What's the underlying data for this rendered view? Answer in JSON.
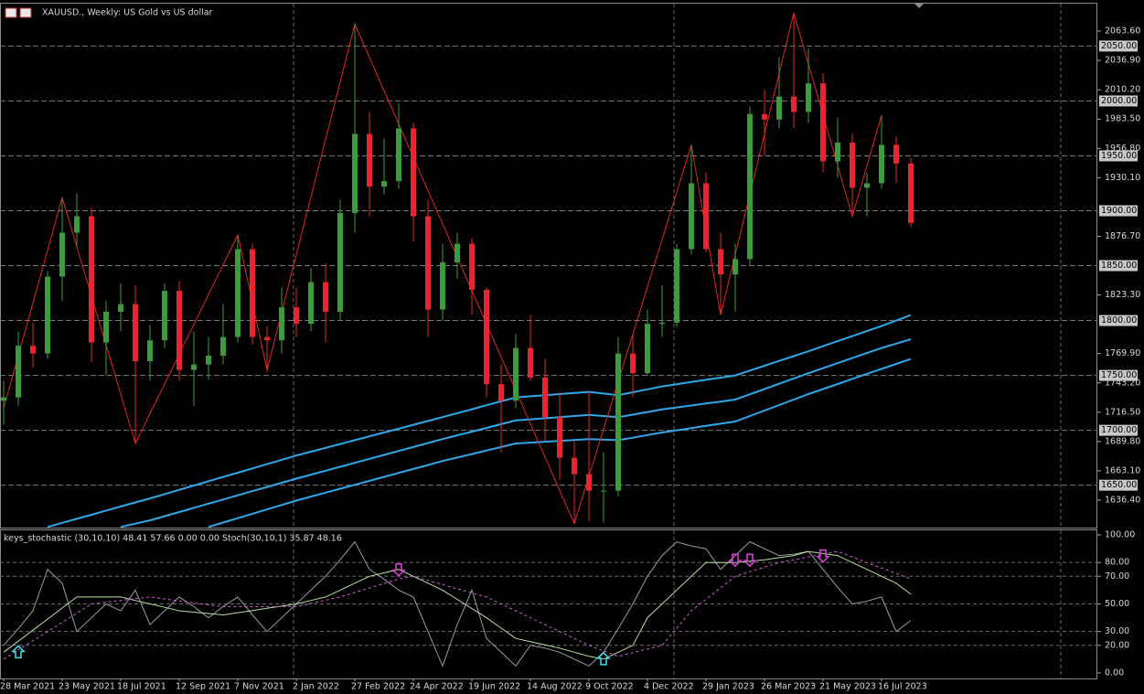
{
  "chart_data": {
    "type": "candlestick",
    "title": "XAUUSD., Weekly:  US Gold vs US dollar",
    "categories": [
      "28 Mar 2021",
      null,
      null,
      null,
      "23 May 2021",
      null,
      null,
      null,
      "18 Jul 2021",
      null,
      null,
      null,
      "12 Sep 2021",
      null,
      null,
      null,
      "7 Nov 2021",
      null,
      null,
      null,
      "2 Jan 2022",
      null,
      null,
      null,
      "27 Feb 2022",
      null,
      null,
      null,
      "24 Apr 2022",
      null,
      null,
      null,
      "19 Jun 2022",
      null,
      null,
      null,
      "14 Aug 2022",
      null,
      null,
      null,
      "9 Oct 2022",
      null,
      null,
      null,
      "4 Dec 2022",
      null,
      null,
      null,
      "29 Jan 2023",
      null,
      null,
      null,
      "26 Mar 2023",
      null,
      null,
      null,
      "21 May 2023",
      null,
      null,
      null,
      "16 Jul 2023",
      null,
      null
    ],
    "open": [
      1727,
      1730,
      1777,
      1770,
      1840,
      1880,
      1895,
      1780,
      1808,
      1815,
      1763,
      1782,
      1827,
      1755,
      1760,
      1768,
      1785,
      1865,
      1785,
      1782,
      1812,
      1797,
      1835,
      1808,
      1898,
      1970,
      1922,
      1927,
      1975,
      1895,
      1810,
      1853,
      1870,
      1828,
      1742,
      1727,
      1775,
      1748,
      1712,
      1675,
      1660,
      1645,
      1645,
      1770,
      1752,
      1797,
      1798,
      1865,
      1925,
      1865,
      1842,
      1856,
      1988,
      1983,
      2004,
      1990,
      2016,
      1945,
      1962,
      1921,
      1925,
      1960,
      1943
    ],
    "high": [
      1745,
      1790,
      1798,
      1845,
      1912,
      1916,
      1903,
      1818,
      1834,
      1832,
      1796,
      1834,
      1836,
      1790,
      1785,
      1815,
      1877,
      1870,
      1795,
      1830,
      1830,
      1848,
      1852,
      1910,
      2070,
      1990,
      1966,
      1998,
      1980,
      1910,
      1870,
      1880,
      1875,
      1830,
      1760,
      1788,
      1805,
      1765,
      1735,
      1690,
      1735,
      1680,
      1785,
      1787,
      1810,
      1832,
      1870,
      1960,
      1935,
      1880,
      1870,
      1995,
      2010,
      2040,
      2080,
      2048,
      2025,
      1985,
      1970,
      1935,
      1987,
      1968,
      1948
    ],
    "low": [
      1705,
      1722,
      1757,
      1765,
      1818,
      1867,
      1762,
      1750,
      1790,
      1688,
      1745,
      1775,
      1745,
      1722,
      1746,
      1760,
      1780,
      1778,
      1753,
      1770,
      1785,
      1790,
      1780,
      1800,
      1880,
      1895,
      1915,
      1920,
      1872,
      1785,
      1800,
      1838,
      1805,
      1730,
      1680,
      1720,
      1745,
      1690,
      1655,
      1615,
      1617,
      1616,
      1640,
      1730,
      1750,
      1785,
      1794,
      1860,
      1862,
      1805,
      1808,
      1850,
      1950,
      1975,
      1975,
      1980,
      1935,
      1930,
      1895,
      1895,
      1920,
      1925,
      1885
    ],
    "close": [
      1730,
      1777,
      1770,
      1840,
      1880,
      1895,
      1780,
      1808,
      1815,
      1763,
      1782,
      1827,
      1755,
      1760,
      1768,
      1785,
      1865,
      1785,
      1782,
      1812,
      1797,
      1835,
      1808,
      1898,
      1970,
      1922,
      1927,
      1975,
      1895,
      1810,
      1853,
      1870,
      1828,
      1742,
      1727,
      1775,
      1748,
      1712,
      1675,
      1660,
      1645,
      1645,
      1770,
      1752,
      1797,
      1798,
      1865,
      1925,
      1865,
      1842,
      1856,
      1988,
      1983,
      2004,
      1990,
      2016,
      1945,
      1962,
      1921,
      1925,
      1960,
      1943,
      1889
    ],
    "up_color": "#3d9a3d",
    "down_color": "#e8262d",
    "ylim": [
      1611.4,
      2087.8
    ],
    "yticks": [
      {
        "value": 2063.6,
        "label": "2063.60"
      },
      {
        "value": 2036.9,
        "label": "2036.90"
      },
      {
        "value": 2010.2,
        "label": "2010.20"
      },
      {
        "value": 1983.5,
        "label": "1983.50"
      },
      {
        "value": 1956.8,
        "label": "1956.80"
      },
      {
        "value": 1930.1,
        "label": "1930.10"
      },
      {
        "value": 1876.7,
        "label": "1876.70"
      },
      {
        "value": 1823.3,
        "label": "1823.30"
      },
      {
        "value": 1769.9,
        "label": "1769.90"
      },
      {
        "value": 1743.2,
        "label": "1743.20"
      },
      {
        "value": 1716.5,
        "label": "1716.50"
      },
      {
        "value": 1689.8,
        "label": "1689.80"
      },
      {
        "value": 1663.1,
        "label": "1663.10"
      },
      {
        "value": 1636.4,
        "label": "1636.40"
      }
    ],
    "levels": [
      {
        "value": 2050,
        "label": "2050.00"
      },
      {
        "value": 2000,
        "label": "2000.00"
      },
      {
        "value": 1950,
        "label": "1950.00"
      },
      {
        "value": 1900,
        "label": "1900.00"
      },
      {
        "value": 1850,
        "label": "1850.00"
      },
      {
        "value": 1800,
        "label": "1800.00"
      },
      {
        "value": 1750,
        "label": "1750.00"
      },
      {
        "value": 1700,
        "label": "1700.00"
      },
      {
        "value": 1650,
        "label": "1650.00"
      }
    ],
    "ma_lines": [
      {
        "color": "#2ea8ea",
        "values": [
          null,
          null,
          null,
          1612,
          1615.7,
          1619.4,
          1623.1,
          1626.9,
          1630.6,
          1634.3,
          1638,
          1641.9,
          1645.8,
          1649.7,
          1653.6,
          1657.5,
          1661.4,
          1665.3,
          1669.2,
          1673.1,
          1677,
          1680.5,
          1684,
          1687.5,
          1691,
          1694.5,
          1698,
          1701.5,
          1705,
          1708.5,
          1712,
          1715.6,
          1719.2,
          1722.8,
          1726.4,
          1730,
          1731,
          1732,
          1733,
          1734,
          1735,
          1733.5,
          1732,
          1734.7,
          1737.3,
          1740,
          1742,
          1744,
          1746,
          1748,
          1750,
          1754.4,
          1758.8,
          1763.2,
          1767.6,
          1772,
          1776.6,
          1781.2,
          1785.8,
          1790.4,
          1795,
          1800,
          1805
        ]
      },
      {
        "color": "#2ea8ea",
        "values": [
          null,
          null,
          null,
          null,
          null,
          null,
          null,
          null,
          1612,
          1615,
          1618,
          1621.8,
          1625.6,
          1629.4,
          1633.2,
          1637,
          1640.8,
          1644.6,
          1648.4,
          1652.2,
          1656,
          1659.6,
          1663.2,
          1666.8,
          1670.4,
          1674,
          1677.6,
          1681.2,
          1684.8,
          1688.4,
          1692,
          1695.4,
          1698.8,
          1702.2,
          1705.6,
          1709,
          1710,
          1711,
          1712,
          1713,
          1714,
          1713,
          1712,
          1714.3,
          1716.7,
          1719,
          1720.8,
          1722.6,
          1724.4,
          1726.2,
          1728,
          1732.8,
          1737.6,
          1742.4,
          1747.2,
          1752,
          1756.6,
          1761.2,
          1765.8,
          1770.4,
          1775,
          1779,
          1783
        ]
      },
      {
        "color": "#2ea8ea",
        "values": [
          null,
          null,
          null,
          null,
          null,
          null,
          null,
          null,
          null,
          null,
          null,
          null,
          null,
          null,
          1612,
          1616,
          1620,
          1624,
          1628,
          1632,
          1636,
          1639.6,
          1643.2,
          1646.8,
          1650.4,
          1654,
          1657.6,
          1661.2,
          1664.8,
          1668.4,
          1672,
          1675.2,
          1678.4,
          1681.6,
          1684.8,
          1688,
          1688.8,
          1689.6,
          1690.4,
          1691.2,
          1692,
          1691.5,
          1691,
          1693.3,
          1695.7,
          1698,
          1700,
          1702,
          1704,
          1706,
          1708,
          1713,
          1718,
          1723,
          1728,
          1733,
          1737.6,
          1742.2,
          1746.8,
          1751.4,
          1756,
          1760.5,
          1765
        ]
      }
    ],
    "zigzag": {
      "color": "#e02424",
      "x": [
        0,
        4,
        9,
        16,
        18,
        24,
        39,
        47,
        49,
        54,
        58,
        60
      ],
      "values": [
        1720,
        1912,
        1688,
        1878,
        1755,
        2070,
        1615,
        1960,
        1805,
        2080,
        1895,
        1987
      ]
    },
    "stochastic": {
      "label": "keys_stochastic (30,10,10) 48.41 57.66 0.00 0.00 Stoch(30,10,1) 35.87 48.16",
      "ylim": [
        -4,
        103.3
      ],
      "yticks": [
        {
          "value": 100,
          "label": "100.00"
        },
        {
          "value": 80,
          "label": "80.00"
        },
        {
          "value": 70,
          "label": "70.00"
        },
        {
          "value": 50,
          "label": "50.00"
        },
        {
          "value": 30,
          "label": "30.00"
        },
        {
          "value": 20,
          "label": "20.00"
        },
        {
          "value": 0,
          "label": "0.00"
        }
      ],
      "series": [
        {
          "color": "#9a9aa8",
          "dash": false,
          "values": [
            20,
            32,
            45,
            75,
            65,
            30,
            40,
            50,
            45,
            60,
            35,
            45,
            55,
            48,
            40,
            48,
            55,
            42,
            30,
            40,
            50,
            60,
            70,
            82,
            95,
            75,
            68,
            60,
            55,
            30,
            5,
            35,
            60,
            25,
            15,
            5,
            20,
            18,
            15,
            10,
            5,
            15,
            32,
            50,
            70,
            85,
            95,
            92,
            90,
            75,
            85,
            95,
            90,
            85,
            86,
            88,
            75,
            62,
            50,
            52,
            55,
            30,
            38
          ]
        },
        {
          "color": "#b8e0a0",
          "dash": false,
          "values": [
            15,
            23,
            31,
            39,
            47,
            55,
            55,
            55,
            55,
            52.5,
            50,
            47.5,
            45,
            44,
            43,
            42,
            43.6,
            45.2,
            46.8,
            48.4,
            50,
            52.5,
            55,
            60,
            65,
            70,
            72.5,
            75,
            70,
            65,
            60,
            53.3,
            46.7,
            40,
            32.5,
            25,
            22.7,
            20.3,
            18,
            15,
            12,
            10,
            15,
            20,
            40,
            50,
            60,
            70,
            80,
            80,
            80,
            81,
            82,
            83.5,
            85,
            88,
            86.5,
            85,
            80,
            75,
            70,
            65,
            57
          ]
        },
        {
          "color": "#d060d0",
          "dash": true,
          "values": [
            10,
            16.7,
            23.3,
            30,
            36.7,
            43.3,
            50,
            51.3,
            52.5,
            53.8,
            55,
            53.6,
            52.2,
            50.8,
            49.4,
            48,
            48,
            48,
            48,
            48,
            48,
            50.3,
            52.7,
            55,
            58.3,
            61.5,
            64.8,
            68,
            70,
            67,
            64,
            61,
            58,
            55,
            50,
            45,
            40,
            35,
            30,
            25,
            20,
            16,
            12,
            14.7,
            17.3,
            20,
            32.5,
            45,
            53.3,
            61.7,
            70,
            73.3,
            76.7,
            80,
            82,
            84,
            86,
            88,
            84,
            80,
            76,
            72,
            68
          ]
        }
      ],
      "buy_signals": {
        "color": "#40e0f0",
        "x": [
          1,
          41
        ],
        "values": [
          15,
          10
        ]
      },
      "sell_signals": {
        "color": "#e040e0",
        "x": [
          27,
          50,
          51,
          56
        ],
        "values": [
          75,
          82,
          82,
          85
        ]
      }
    }
  }
}
